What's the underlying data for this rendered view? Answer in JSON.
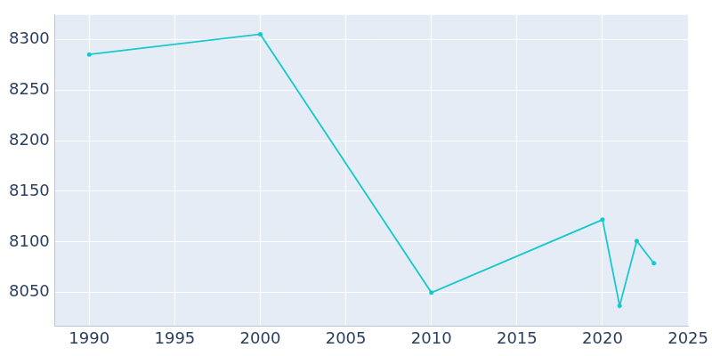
{
  "chart_data": {
    "type": "line",
    "x": [
      1990,
      2000,
      2010,
      2020,
      2021,
      2022,
      2023
    ],
    "values": [
      8285,
      8305,
      8050,
      8122,
      8037,
      8101,
      8079
    ],
    "color": "#17c9cc",
    "marker": "circle",
    "xlim": [
      1988,
      2025
    ],
    "xticks": [
      1990,
      1995,
      2000,
      2005,
      2010,
      2015,
      2020,
      2025
    ],
    "ylim": [
      8017,
      8324
    ],
    "yticks": [
      8050,
      8100,
      8150,
      8200,
      8250,
      8300
    ],
    "grid": true
  }
}
